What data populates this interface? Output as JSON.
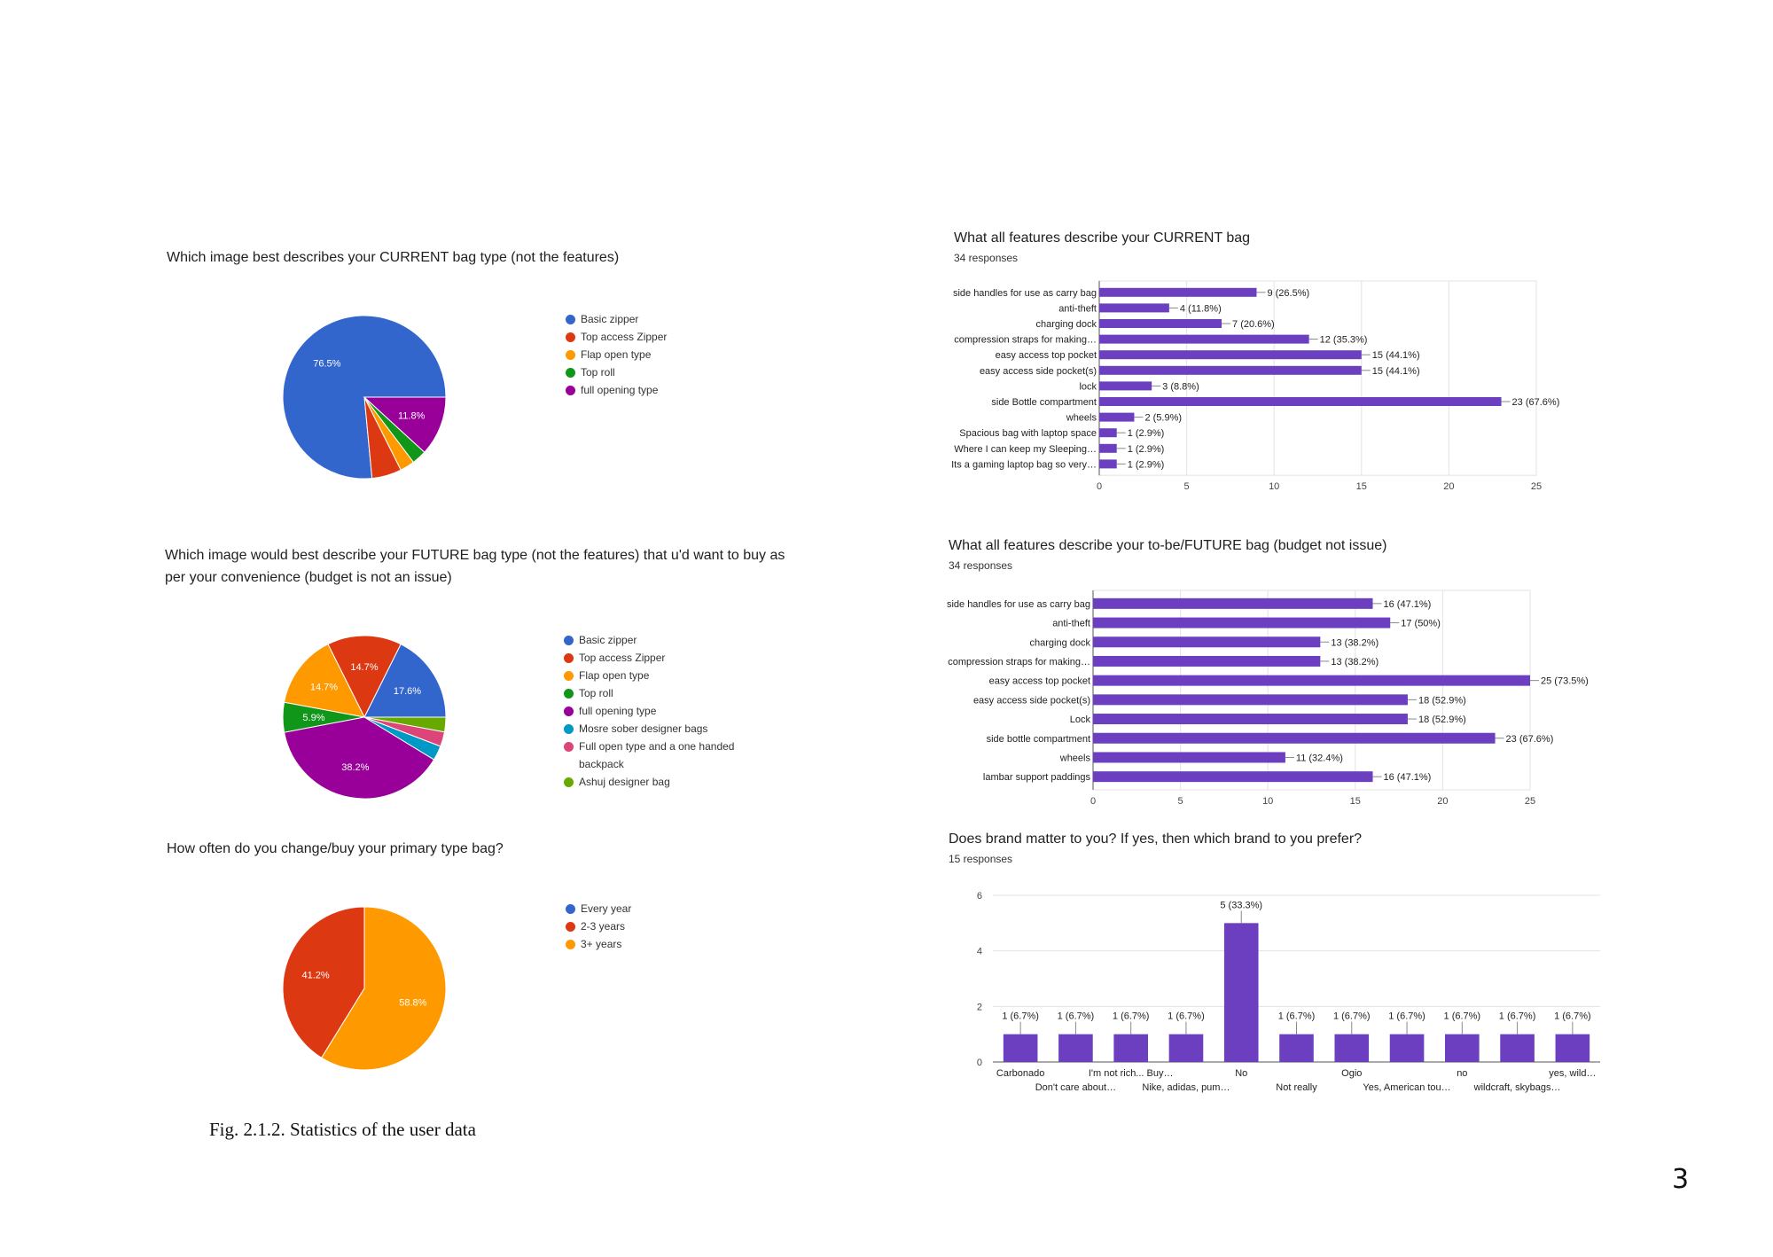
{
  "page": {
    "number": "3",
    "caption": "Fig. 2.1.2. Statistics of the user data"
  },
  "chart_data": [
    {
      "id": "current_type",
      "type": "pie",
      "title": "Which image best describes your CURRENT bag type (not the features)",
      "start_angle": 0,
      "slices": [
        {
          "label": "Basic zipper",
          "value": 76.5,
          "color": "#3366cc",
          "show_label": true
        },
        {
          "label": "Top access Zipper",
          "value": 5.9,
          "color": "#dc3912",
          "show_label": false
        },
        {
          "label": "Flap open type",
          "value": 2.9,
          "color": "#ff9900",
          "show_label": false
        },
        {
          "label": "Top roll",
          "value": 2.9,
          "color": "#109618",
          "show_label": false
        },
        {
          "label": "full opening type",
          "value": 11.8,
          "color": "#990099",
          "show_label": true
        }
      ]
    },
    {
      "id": "future_type",
      "type": "pie",
      "title": "Which image would best describe your FUTURE bag type (not the features) that u'd want to buy as per your convenience (budget is not an issue)",
      "start_angle": 0,
      "slices": [
        {
          "label": "Basic zipper",
          "value": 17.6,
          "color": "#3366cc",
          "show_label": true
        },
        {
          "label": "Top access Zipper",
          "value": 14.7,
          "color": "#dc3912",
          "show_label": true
        },
        {
          "label": "Flap open type",
          "value": 14.7,
          "color": "#ff9900",
          "show_label": true
        },
        {
          "label": "Top roll",
          "value": 5.9,
          "color": "#109618",
          "show_label": true
        },
        {
          "label": "full opening type",
          "value": 38.2,
          "color": "#990099",
          "show_label": true
        },
        {
          "label": "Mosre sober designer bags",
          "value": 2.9,
          "color": "#0099c6",
          "show_label": false
        },
        {
          "label": "Full open type and a one handed backpack",
          "value": 2.9,
          "color": "#dd4477",
          "show_label": false
        },
        {
          "label": "Ashuj designer bag",
          "value": 2.9,
          "color": "#66aa00",
          "show_label": false
        }
      ]
    },
    {
      "id": "change_freq",
      "type": "pie",
      "title": "How often do you change/buy your primary type bag?",
      "start_angle": 90,
      "slices": [
        {
          "label": "Every year",
          "value": 0,
          "color": "#3366cc",
          "show_label": false
        },
        {
          "label": "2-3 years",
          "value": 41.2,
          "color": "#dc3912",
          "show_label": true
        },
        {
          "label": "3+ years",
          "value": 58.8,
          "color": "#ff9900",
          "show_label": true
        }
      ]
    },
    {
      "id": "current_features",
      "type": "bar",
      "orientation": "horizontal",
      "title": "What all features describe your CURRENT bag",
      "subtitle": "34 responses",
      "xlim": [
        0,
        25
      ],
      "ticks": [
        0,
        5,
        10,
        15,
        20,
        25
      ],
      "bar_color": "#6b3fbf",
      "categories": [
        "side handles for use as carry bag",
        "anti-theft",
        "charging dock",
        "compression straps for making…",
        "easy access top pocket",
        "easy access side pocket(s)",
        "lock",
        "side Bottle compartment",
        "wheels",
        "Spacious bag with laptop space",
        "Where I can keep my Sleeping…",
        "Its a gaming laptop bag so very…"
      ],
      "values": [
        9,
        4,
        7,
        12,
        15,
        15,
        3,
        23,
        2,
        1,
        1,
        1
      ],
      "value_labels": [
        "9 (26.5%)",
        "4 (11.8%)",
        "7 (20.6%)",
        "12 (35.3%)",
        "15 (44.1%)",
        "15 (44.1%)",
        "3 (8.8%)",
        "23 (67.6%)",
        "2 (5.9%)",
        "1 (2.9%)",
        "1 (2.9%)",
        "1 (2.9%)"
      ]
    },
    {
      "id": "future_features",
      "type": "bar",
      "orientation": "horizontal",
      "title": "What all features describe your to-be/FUTURE bag (budget not issue)",
      "subtitle": "34 responses",
      "xlim": [
        0,
        25
      ],
      "ticks": [
        0,
        5,
        10,
        15,
        20,
        25
      ],
      "bar_color": "#6b3fbf",
      "categories": [
        "side handles for use as carry bag",
        "anti-theft",
        "charging dock",
        "compression straps for making…",
        "easy access top pocket",
        "easy access side pocket(s)",
        "Lock",
        "side bottle compartment",
        "wheels",
        "lambar support paddings"
      ],
      "values": [
        16,
        17,
        13,
        13,
        25,
        18,
        18,
        23,
        11,
        16
      ],
      "value_labels": [
        "16 (47.1%)",
        "17 (50%)",
        "13 (38.2%)",
        "13 (38.2%)",
        "25 (73.5%)",
        "18 (52.9%)",
        "18 (52.9%)",
        "23 (67.6%)",
        "11 (32.4%)",
        "16 (47.1%)"
      ]
    },
    {
      "id": "brand",
      "type": "bar",
      "orientation": "vertical",
      "title": "Does brand matter to you? If yes, then which brand to you prefer?",
      "subtitle": "15 responses",
      "ylim": [
        0,
        6
      ],
      "ticks": [
        0,
        2,
        4,
        6
      ],
      "bar_color": "#6b3fbf",
      "categories": [
        "Carbonado",
        "Don't care about…",
        "I'm not rich... Buy…",
        "Nike, adidas, pum…",
        "No",
        "Not really",
        "Ogio",
        "Yes, American tou…",
        "no",
        "wildcraft, skybags…",
        "yes, wild…"
      ],
      "values": [
        1,
        1,
        1,
        1,
        5,
        1,
        1,
        1,
        1,
        1,
        1
      ],
      "value_labels": [
        "1 (6.7%)",
        "1 (6.7%)",
        "1 (6.7%)",
        "1 (6.7%)",
        "5 (33.3%)",
        "1 (6.7%)",
        "1 (6.7%)",
        "1 (6.7%)",
        "1 (6.7%)",
        "1 (6.7%)",
        "1 (6.7%)"
      ]
    }
  ]
}
